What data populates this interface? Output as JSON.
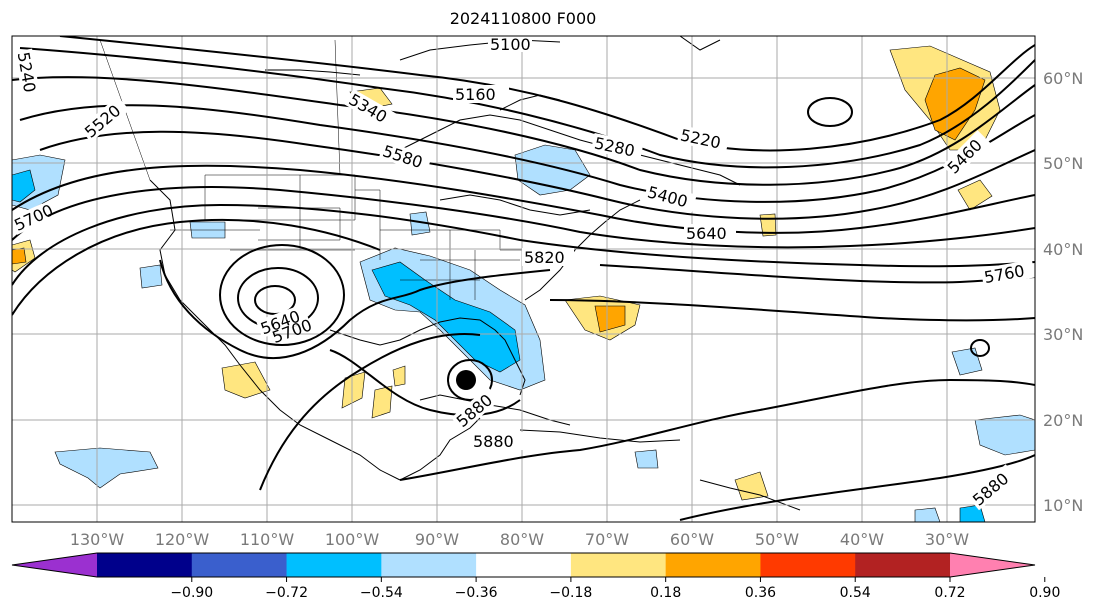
{
  "title": "2024110800 F000",
  "longitude_labels": [
    "130°W",
    "120°W",
    "110°W",
    "100°W",
    "90°W",
    "80°W",
    "70°W",
    "60°W",
    "50°W",
    "40°W",
    "30°W"
  ],
  "latitude_labels": [
    "60°N",
    "50°N",
    "40°N",
    "30°N",
    "20°N",
    "10°N"
  ],
  "contour_labels": [
    "5100",
    "5160",
    "5340",
    "5580",
    "5280",
    "5220",
    "5460",
    "5400",
    "5640",
    "5760",
    "5520",
    "5240",
    "5700",
    "5640",
    "5700",
    "5820",
    "5880",
    "5880",
    "5880"
  ],
  "colorbar": {
    "ticks": [
      "−0.90",
      "−0.72",
      "−0.54",
      "−0.36",
      "−0.18",
      "0.18",
      "0.36",
      "0.54",
      "0.72",
      "0.90"
    ],
    "colors": [
      "#9b30d0",
      "#00008b",
      "#3a5fcd",
      "#00bfff",
      "#b0e0ff",
      "#ffffff",
      "#ffe680",
      "#ffa500",
      "#ff3a00",
      "#b22222",
      "#ff80b0"
    ]
  },
  "shading_colors": {
    "light_blue": "#b0e0ff",
    "blue": "#00bfff",
    "yellow": "#ffe680",
    "orange": "#ffa500"
  },
  "storm_marker": "hurricane-center"
}
